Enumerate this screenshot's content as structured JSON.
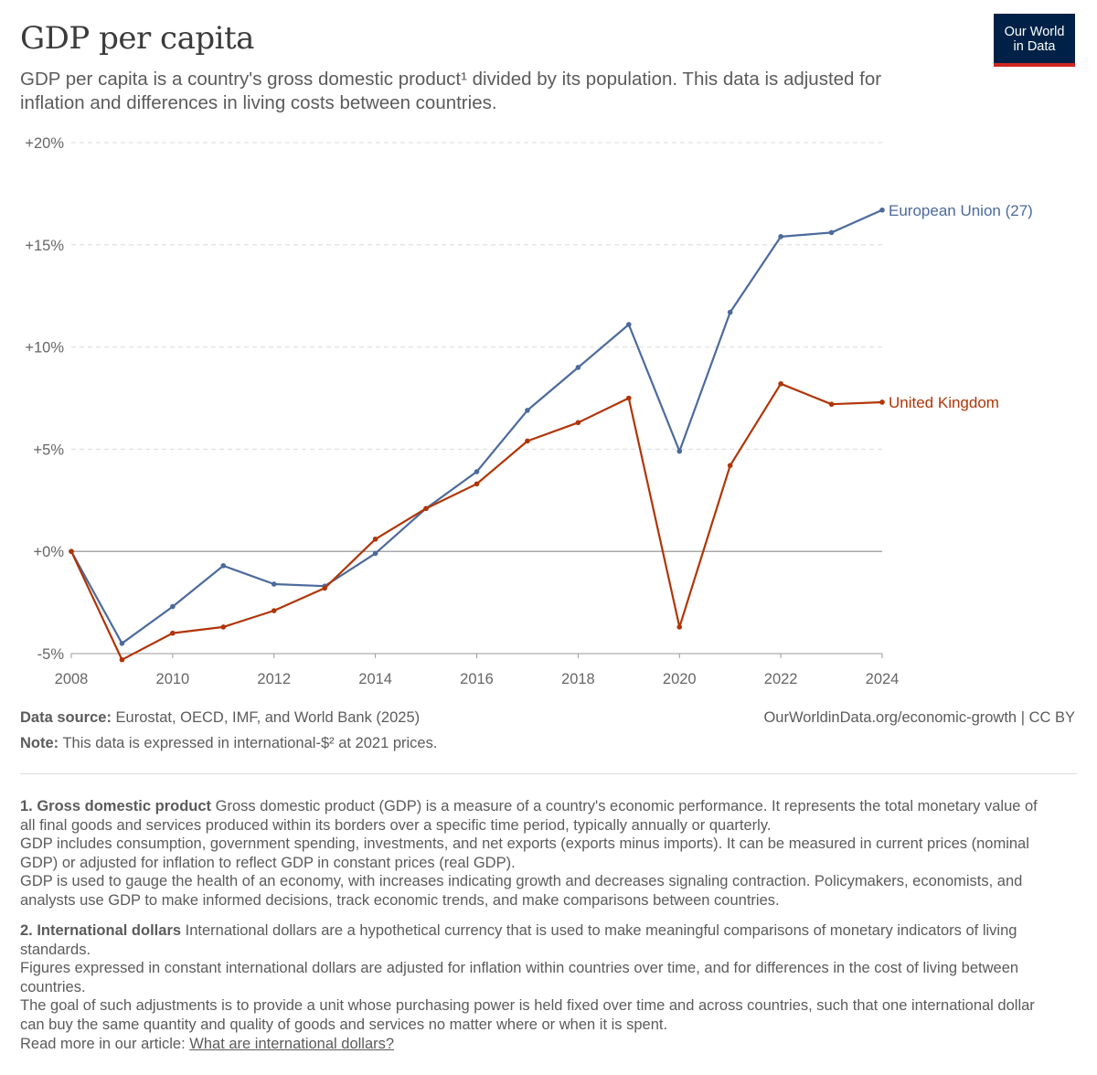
{
  "header": {
    "title": "GDP per capita",
    "subtitle": "GDP per capita is a country's gross domestic product¹ divided by its population. This data is adjusted for inflation and differences in living costs between countries.",
    "logo_line1": "Our World",
    "logo_line2": "in Data"
  },
  "chart_data": {
    "type": "line",
    "title": "GDP per capita",
    "xlim": [
      2008,
      2024
    ],
    "ylim": [
      -5,
      20
    ],
    "x_ticks": [
      "2008",
      "2010",
      "2012",
      "2014",
      "2016",
      "2018",
      "2020",
      "2022",
      "2024"
    ],
    "y_ticks": [
      "-5%",
      "+0%",
      "+5%",
      "+10%",
      "+15%",
      "+20%"
    ],
    "y_tick_values": [
      -5,
      0,
      5,
      10,
      15,
      20
    ],
    "grid": "horizontal dashed",
    "legend": "labels at line ends",
    "series": [
      {
        "name": "European Union (27)",
        "color": "#4c6a9c",
        "x": [
          2008,
          2009,
          2010,
          2011,
          2012,
          2013,
          2014,
          2015,
          2016,
          2017,
          2018,
          2019,
          2020,
          2021,
          2022,
          2023,
          2024
        ],
        "values": [
          0,
          -4.5,
          -2.7,
          -0.7,
          -1.6,
          -1.7,
          -0.1,
          2.1,
          3.9,
          6.9,
          9.0,
          11.1,
          4.9,
          11.7,
          15.4,
          15.6,
          16.7
        ]
      },
      {
        "name": "United Kingdom",
        "color": "#b13507",
        "x": [
          2008,
          2009,
          2010,
          2011,
          2012,
          2013,
          2014,
          2015,
          2016,
          2017,
          2018,
          2019,
          2020,
          2021,
          2022,
          2023,
          2024
        ],
        "values": [
          0,
          -5.3,
          -4.0,
          -3.7,
          -2.9,
          -1.8,
          0.6,
          2.1,
          3.3,
          5.4,
          6.3,
          7.5,
          -3.7,
          4.2,
          8.2,
          7.2,
          7.3
        ]
      }
    ]
  },
  "footer": {
    "source_label": "Data source:",
    "source_text": "Eurostat, OECD, IMF, and World Bank (2025)",
    "note_label": "Note:",
    "note_text": "This data is expressed in international-$² at 2021 prices.",
    "license": "OurWorldinData.org/economic-growth | CC BY"
  },
  "footnotes": {
    "fn1": {
      "heading": "1. Gross domestic product",
      "line1": "Gross domestic product (GDP) is a measure of a country's economic performance. It represents the total monetary value of all final goods and services produced within its borders over a specific time period, typically annually or quarterly.",
      "line2": "GDP includes consumption, government spending, investments, and net exports (exports minus imports). It can be measured in current prices (nominal GDP) or adjusted for inflation to reflect GDP in constant prices (real GDP).",
      "line3": "GDP is used to gauge the health of an economy, with increases indicating growth and decreases signaling contraction. Policymakers, economists, and analysts use GDP to make informed decisions, track economic trends, and make comparisons between countries."
    },
    "fn2": {
      "heading": "2. International dollars",
      "line1": "International dollars are a hypothetical currency that is used to make meaningful comparisons of monetary indicators of living standards.",
      "line2": "Figures expressed in constant international dollars are adjusted for inflation within countries over time, and for differences in the cost of living between countries.",
      "line3": "The goal of such adjustments is to provide a unit whose purchasing power is held fixed over time and across countries, such that one international dollar can buy the same quantity and quality of goods and services no matter where or when it is spent.",
      "read_more": "Read more in our article:",
      "link_text": "What are international dollars?"
    }
  }
}
